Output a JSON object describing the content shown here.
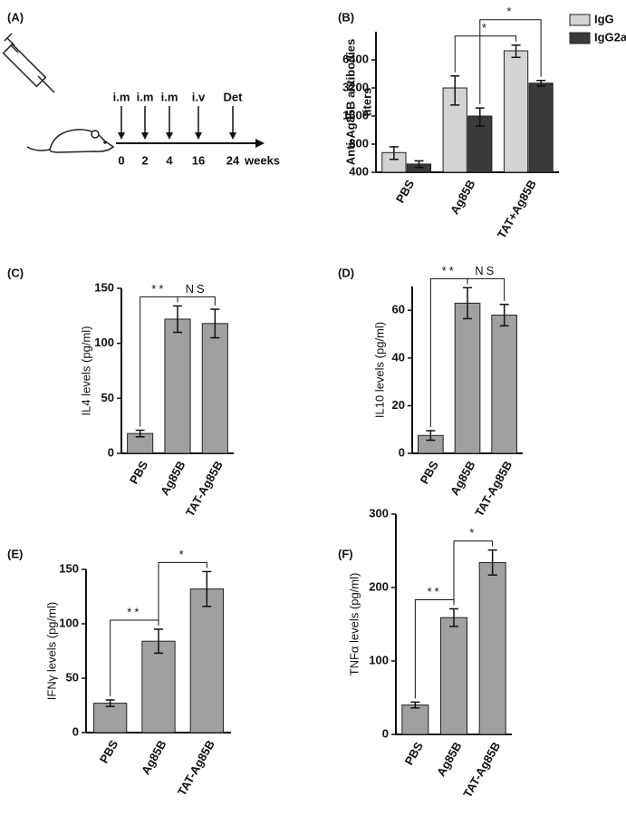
{
  "timeline": {
    "panel": "(A)",
    "events": [
      {
        "route": "i.m",
        "week": 0
      },
      {
        "route": "i.m",
        "week": 2
      },
      {
        "route": "i.m",
        "week": 4
      },
      {
        "route": "i.v",
        "week": 16
      },
      {
        "route": "Det",
        "week": 24
      }
    ],
    "unit": "weeks"
  },
  "chart_data": [
    {
      "type": "bar",
      "panel": "(B)",
      "ylabel": [
        "Anti-Ag85B antibodies",
        "titers"
      ],
      "log_scale": true,
      "categories": [
        "PBS",
        "Ag85B",
        "TAT+Ag85B"
      ],
      "series": [
        {
          "name": "IgG",
          "color": "#d3d3d3",
          "values": [
            650,
            3200,
            8000
          ],
          "errors": [
            100,
            1100,
            1200
          ]
        },
        {
          "name": "IgG2a",
          "color": "#3a3a3a",
          "values": [
            490,
            1600,
            3600
          ],
          "errors": [
            40,
            350,
            250
          ]
        }
      ],
      "ylim": [
        400,
        12800
      ],
      "yticks": [
        400,
        800,
        1600,
        3200,
        6400
      ],
      "legend": "top-right",
      "annotations": [
        {
          "text": "*",
          "series": "IgG",
          "from": "Ag85B",
          "to": "TAT+Ag85B"
        },
        {
          "text": "*",
          "series": "IgG2a",
          "from": "Ag85B",
          "to": "TAT+Ag85B"
        }
      ]
    },
    {
      "type": "bar",
      "panel": "(C)",
      "ylabel": "IL4 levels (pg/ml)",
      "categories": [
        "PBS",
        "Ag85B",
        "TAT-Ag85B"
      ],
      "values": [
        18,
        122,
        118
      ],
      "errors": [
        3,
        12,
        13
      ],
      "color": "#a0a0a0",
      "ylim": [
        0,
        150
      ],
      "yticks": [
        0,
        50,
        100,
        150
      ],
      "annotations": [
        {
          "text": "**",
          "from": "PBS",
          "to": "Ag85B"
        },
        {
          "text": "NS",
          "from": "Ag85B",
          "to": "TAT-Ag85B"
        }
      ]
    },
    {
      "type": "bar",
      "panel": "(D)",
      "ylabel": "IL10 levels (pg/ml)",
      "categories": [
        "PBS",
        "Ag85B",
        "TAT-Ag85B"
      ],
      "values": [
        7.5,
        63,
        58
      ],
      "errors": [
        2,
        6.5,
        4.5
      ],
      "color": "#a0a0a0",
      "ylim": [
        0,
        70
      ],
      "yticks": [
        0,
        20,
        40,
        60
      ],
      "annotations": [
        {
          "text": "**",
          "from": "PBS",
          "to": "Ag85B"
        },
        {
          "text": "NS",
          "from": "Ag85B",
          "to": "TAT-Ag85B"
        }
      ]
    },
    {
      "type": "bar",
      "panel": "(E)",
      "ylabel": "IFNγ levels (pg/ml)",
      "categories": [
        "PBS",
        "Ag85B",
        "TAT-Ag85B"
      ],
      "values": [
        27,
        84,
        132
      ],
      "errors": [
        3,
        11,
        16
      ],
      "color": "#a0a0a0",
      "ylim": [
        0,
        150
      ],
      "yticks": [
        0,
        50,
        100,
        150
      ],
      "annotations": [
        {
          "text": "**",
          "from": "PBS",
          "to": "Ag85B"
        },
        {
          "text": "*",
          "from": "Ag85B",
          "to": "TAT-Ag85B"
        }
      ]
    },
    {
      "type": "bar",
      "panel": "(F)",
      "ylabel": "TNFα levels (pg/ml)",
      "categories": [
        "PBS",
        "Ag85B",
        "TAT-Ag85B"
      ],
      "values": [
        40,
        159,
        234
      ],
      "errors": [
        4,
        12,
        17
      ],
      "color": "#a0a0a0",
      "ylim": [
        0,
        300
      ],
      "yticks": [
        0,
        100,
        200,
        300
      ],
      "annotations": [
        {
          "text": "**",
          "from": "PBS",
          "to": "Ag85B"
        },
        {
          "text": "*",
          "from": "Ag85B",
          "to": "TAT-Ag85B"
        }
      ]
    }
  ]
}
